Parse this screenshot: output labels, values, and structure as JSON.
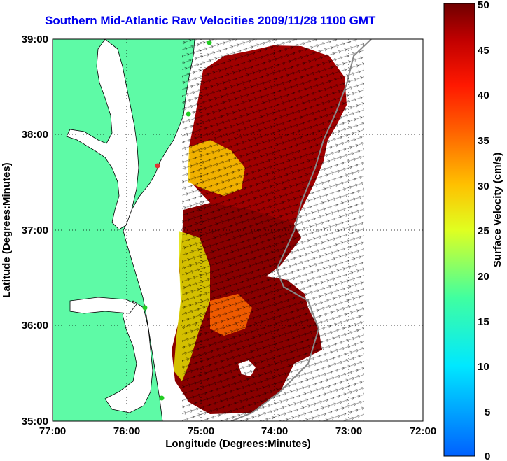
{
  "title": "Southern Mid-Atlantic Raw Velocities 2009/11/28 1100 GMT",
  "map": {
    "x_label": "Longitude (Degrees:Minutes)",
    "y_label": "Latitude (Degrees:Minutes)",
    "x_ticks": [
      "77:00",
      "76:00",
      "75:00",
      "74:00",
      "73:00",
      "72:00"
    ],
    "y_ticks": [
      "39:00",
      "38:00",
      "37:00",
      "36:00",
      "35:00"
    ],
    "x_range": [
      -77,
      -72
    ],
    "y_range": [
      35,
      39
    ],
    "grid": true,
    "land_color": "#5efaa6",
    "coast_color": "#000000",
    "station_color": "#22cc22"
  },
  "colorbar": {
    "label": "Surface Velocity (cm/s)",
    "ticks": [
      "50",
      "45",
      "40",
      "35",
      "30",
      "25",
      "20",
      "15",
      "10",
      "5",
      "0"
    ],
    "range": [
      0,
      50
    ]
  }
}
